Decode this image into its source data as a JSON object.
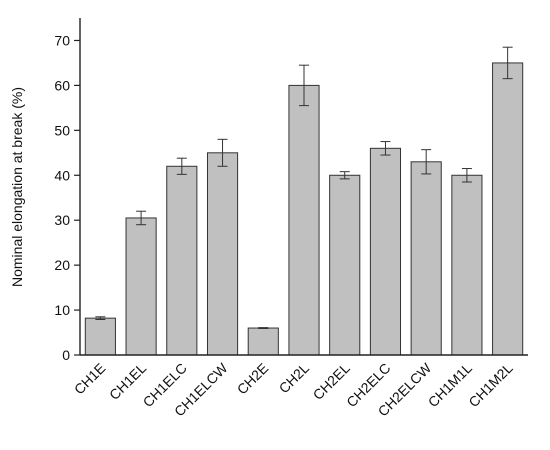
{
  "chart_data": {
    "type": "bar",
    "y_label": "Nominal elongation at break (%)",
    "categories": [
      "CH1E",
      "CH1EL",
      "CH1ELC",
      "CH1ELCW",
      "CH2E",
      "CH2L",
      "CH2EL",
      "CH2ELC",
      "CH2ELCW",
      "CH1M1L",
      "CH1M2L"
    ],
    "values": [
      8.2,
      30.5,
      42,
      45,
      6,
      60,
      40,
      46,
      43,
      40,
      65
    ],
    "errors": [
      0.3,
      1.5,
      1.8,
      3,
      0.1,
      4.5,
      0.8,
      1.5,
      2.7,
      1.5,
      3.5
    ],
    "color": "#c0c0c0",
    "ylim": [
      0,
      75
    ],
    "yticks": [
      0,
      10,
      20,
      30,
      40,
      50,
      60,
      70
    ]
  }
}
